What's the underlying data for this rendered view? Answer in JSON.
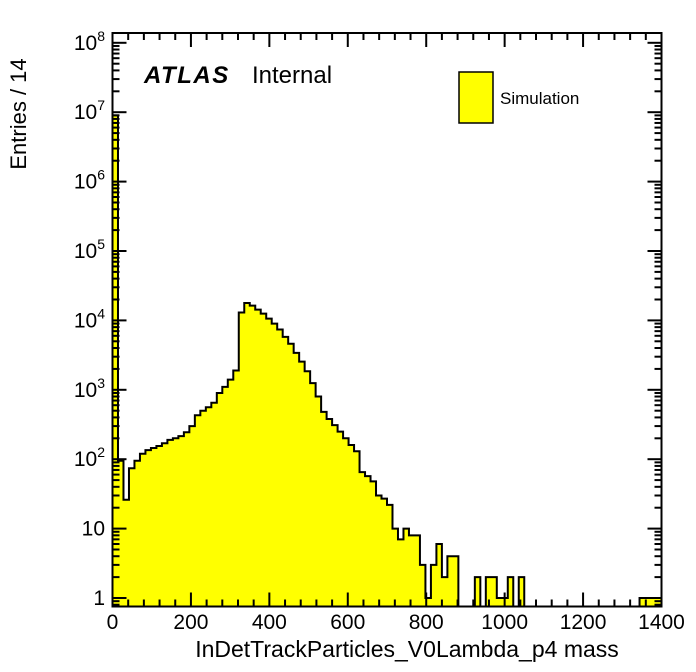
{
  "colors": {
    "background": "#ffffff",
    "axis": "#000000",
    "text": "#000000",
    "hist_fill": "#ffff00",
    "hist_line": "#000000"
  },
  "annotations": {
    "experiment": "ATLAS",
    "label": "Internal"
  },
  "legend": {
    "position": "top-right",
    "entries": [
      {
        "label": "Simulation",
        "swatch_fill": "#ffff00",
        "swatch_border": "#000000"
      }
    ]
  },
  "chart_data": {
    "type": "bar",
    "style": "filled-step-histogram",
    "title": "",
    "xlabel": "InDetTrackParticles_V0Lambda_p4 mass",
    "ylabel": "Entries / 14",
    "grid": false,
    "legend_position": "top-right",
    "x_range": [
      0,
      1400
    ],
    "x_tick_labels": [
      "0",
      "200",
      "400",
      "600",
      "800",
      "1000",
      "1200",
      "1400"
    ],
    "x_minor_tick_step": 40,
    "y_scale": "log",
    "y_range": [
      0.75,
      140000000
    ],
    "y_tick_labels": [
      {
        "text": "1",
        "exp": ""
      },
      {
        "text": "10",
        "exp": ""
      },
      {
        "text": "10",
        "exp": "2"
      },
      {
        "text": "10",
        "exp": "3"
      },
      {
        "text": "10",
        "exp": "4"
      },
      {
        "text": "10",
        "exp": "5"
      },
      {
        "text": "10",
        "exp": "6"
      },
      {
        "text": "10",
        "exp": "7"
      },
      {
        "text": "10",
        "exp": "8"
      }
    ],
    "bin_start": 0,
    "bin_width": 14,
    "values": [
      9000000,
      95,
      26,
      74,
      95,
      120,
      135,
      145,
      155,
      170,
      190,
      200,
      215,
      245,
      300,
      430,
      500,
      560,
      650,
      900,
      1100,
      1400,
      1900,
      13000,
      17800,
      16300,
      14300,
      12500,
      10600,
      9000,
      7400,
      5800,
      4600,
      3400,
      2550,
      1850,
      1250,
      800,
      480,
      380,
      310,
      250,
      200,
      160,
      130,
      65,
      57,
      48,
      30,
      27,
      22,
      10,
      7,
      10,
      8,
      8,
      3,
      1,
      3,
      6,
      2,
      4,
      4,
      0,
      0,
      0,
      2,
      0,
      2,
      2,
      1,
      1,
      2,
      0,
      2,
      0,
      0,
      0,
      0,
      0,
      0,
      0,
      0,
      0,
      0,
      0,
      0,
      0,
      0,
      0,
      0,
      0,
      0,
      0,
      0,
      0,
      1,
      1,
      1,
      1
    ]
  }
}
